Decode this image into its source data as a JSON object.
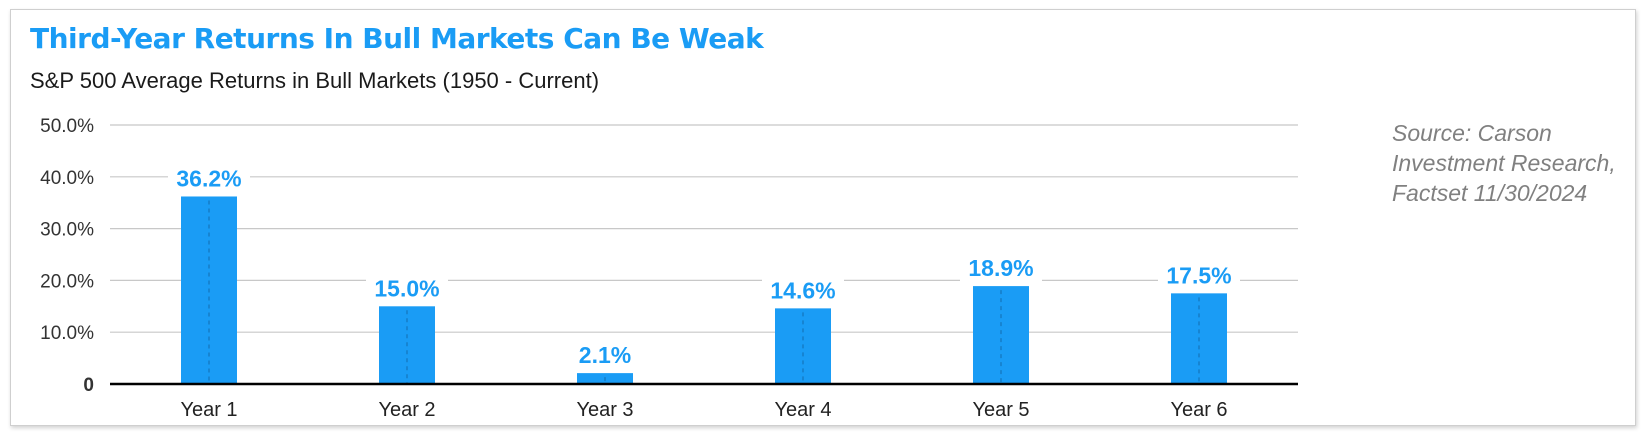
{
  "title": "Third-Year Returns In Bull Markets Can Be Weak",
  "subtitle": "S&P 500 Average Returns in Bull Markets (1950 - Current)",
  "source": "Source: Carson Investment Research, Factset 11/30/2024",
  "colors": {
    "accent": "#1a9cf5",
    "bar": "#1a9cf5",
    "grid": "#c8c8c8"
  },
  "chart_data": {
    "type": "bar",
    "title": "Third-Year Returns In Bull Markets Can Be Weak",
    "subtitle": "S&P 500 Average Returns in Bull Markets (1950 - Current)",
    "categories": [
      "Year 1",
      "Year 2",
      "Year 3",
      "Year 4",
      "Year 5",
      "Year 6"
    ],
    "values": [
      36.2,
      15.0,
      2.1,
      14.6,
      18.9,
      17.5
    ],
    "data_labels": [
      "36.2%",
      "15.0%",
      "2.1%",
      "14.6%",
      "18.9%",
      "17.5%"
    ],
    "ylim": [
      0,
      50
    ],
    "yticks": [
      0,
      10,
      20,
      30,
      40,
      50
    ],
    "ytick_labels": [
      "0",
      "10.0%",
      "20.0%",
      "30.0%",
      "40.0%",
      "50.0%"
    ],
    "xlabel": "",
    "ylabel": "",
    "grid": true,
    "legend": "none"
  }
}
